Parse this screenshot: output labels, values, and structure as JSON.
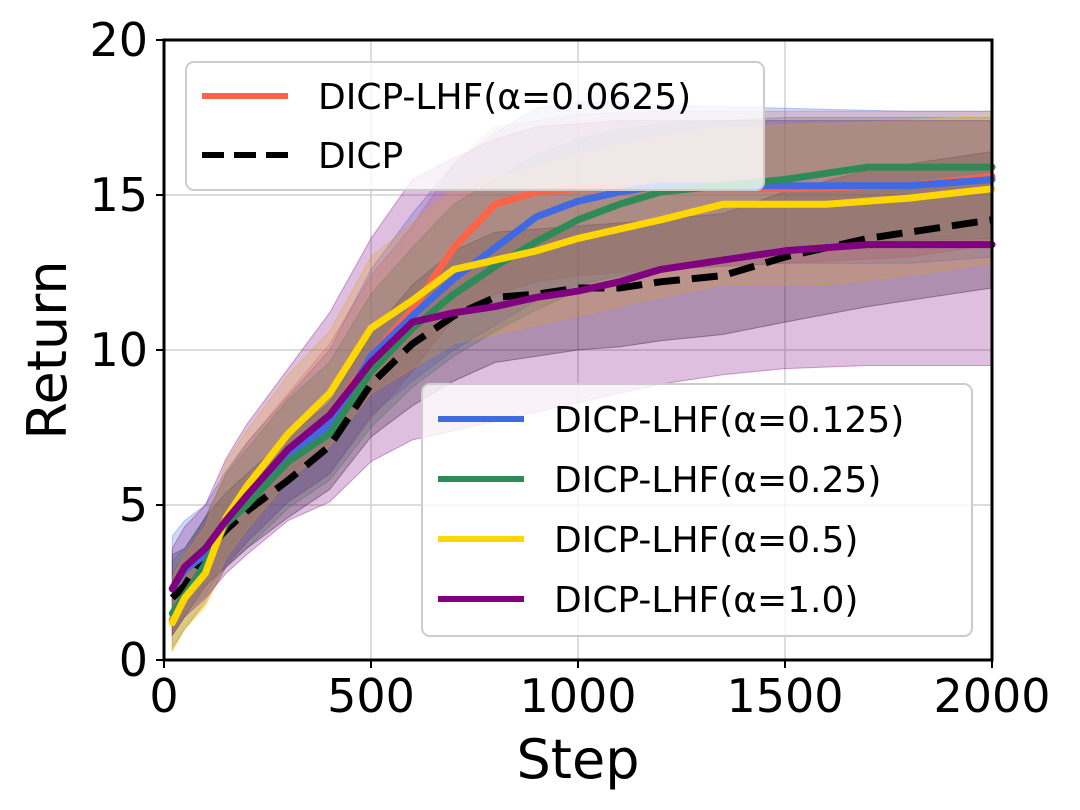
{
  "chart_data": {
    "type": "line",
    "title": "",
    "xlabel": "Step",
    "ylabel": "Return",
    "xlim": [
      0,
      2000
    ],
    "ylim": [
      0,
      20
    ],
    "xticks": [
      "0",
      "500",
      "1000",
      "1500",
      "2000"
    ],
    "yticks": [
      "0",
      "5",
      "10",
      "15",
      "20"
    ],
    "grid": true,
    "legend_upper": {
      "placement": "top-left",
      "entries": [
        "DICP-LHF(α=0.0625)",
        "DICP"
      ]
    },
    "legend_lower": {
      "placement": "lower-right",
      "entries": [
        "DICP-LHF(α=0.125)",
        "DICP-LHF(α=0.25)",
        "DICP-LHF(α=0.5)",
        "DICP-LHF(α=1.0)"
      ]
    },
    "series": [
      {
        "name": "DICP-LHF(α=0.0625)",
        "color": "#ff6347",
        "dash": false,
        "x": [
          20,
          50,
          100,
          150,
          200,
          300,
          400,
          500,
          600,
          650,
          700,
          800,
          900,
          1000,
          1200,
          1500,
          1800,
          2000
        ],
        "values": [
          1.3,
          2.0,
          3.0,
          4.4,
          5.2,
          6.6,
          7.8,
          9.8,
          11.3,
          12.3,
          13.3,
          14.7,
          15.1,
          15.2,
          15.2,
          15.2,
          15.3,
          15.6
        ],
        "band_low": [
          0.3,
          1.0,
          1.8,
          3.0,
          3.8,
          5.1,
          6.0,
          7.8,
          9.3,
          10.2,
          11.0,
          11.8,
          12.2,
          12.4,
          12.6,
          12.8,
          13.0,
          13.4
        ],
        "band_high": [
          2.8,
          3.4,
          4.6,
          6.0,
          7.0,
          8.6,
          10.2,
          12.4,
          14.0,
          15.0,
          16.0,
          17.2,
          17.4,
          17.6,
          17.7,
          17.7,
          17.7,
          17.7
        ]
      },
      {
        "name": "DICP",
        "color": "#000000",
        "dash": true,
        "x": [
          20,
          50,
          100,
          150,
          200,
          300,
          400,
          500,
          600,
          700,
          800,
          900,
          1000,
          1100,
          1200,
          1350,
          1500,
          1700,
          2000
        ],
        "values": [
          2.0,
          2.4,
          3.5,
          4.2,
          4.8,
          5.8,
          6.9,
          8.9,
          10.2,
          11.1,
          11.7,
          11.8,
          12.0,
          12.0,
          12.2,
          12.4,
          13.0,
          13.6,
          14.2
        ],
        "band_low": [
          0.8,
          1.4,
          2.4,
          3.0,
          3.6,
          4.6,
          5.5,
          7.2,
          8.2,
          9.0,
          9.6,
          9.8,
          10.0,
          10.1,
          10.3,
          10.5,
          10.9,
          11.4,
          12.0
        ],
        "band_high": [
          3.4,
          3.6,
          4.6,
          5.4,
          6.0,
          7.2,
          8.3,
          10.5,
          12.1,
          13.2,
          13.8,
          13.9,
          14.0,
          14.1,
          14.2,
          14.4,
          15.1,
          15.8,
          16.4
        ]
      },
      {
        "name": "DICP-LHF(α=0.125)",
        "color": "#4169e1",
        "dash": false,
        "x": [
          20,
          50,
          100,
          150,
          200,
          300,
          400,
          500,
          600,
          700,
          800,
          900,
          1000,
          1100,
          1200,
          1500,
          1800,
          2000
        ],
        "values": [
          2.3,
          2.9,
          3.4,
          4.5,
          5.2,
          6.6,
          7.6,
          9.8,
          11.1,
          12.3,
          13.3,
          14.3,
          14.8,
          15.1,
          15.3,
          15.3,
          15.3,
          15.5
        ],
        "band_low": [
          0.9,
          1.5,
          2.1,
          3.1,
          3.8,
          5.1,
          6.0,
          7.9,
          9.0,
          10.0,
          10.8,
          11.6,
          12.1,
          12.4,
          12.6,
          12.8,
          12.8,
          13.0
        ],
        "band_high": [
          4.0,
          4.5,
          5.0,
          6.1,
          7.0,
          8.5,
          10.0,
          12.6,
          14.4,
          16.0,
          17.0,
          17.8,
          18.0,
          18.0,
          17.9,
          17.8,
          17.7,
          17.7
        ]
      },
      {
        "name": "DICP-LHF(α=0.25)",
        "color": "#2e8b57",
        "dash": false,
        "x": [
          20,
          50,
          100,
          150,
          200,
          300,
          400,
          500,
          600,
          700,
          800,
          900,
          1000,
          1100,
          1200,
          1500,
          1700,
          2000
        ],
        "values": [
          1.5,
          2.1,
          3.1,
          4.4,
          5.0,
          6.4,
          7.3,
          9.3,
          10.7,
          11.8,
          12.7,
          13.5,
          14.2,
          14.7,
          15.1,
          15.5,
          15.9,
          15.9
        ],
        "band_low": [
          0.4,
          1.0,
          1.9,
          3.0,
          3.6,
          4.9,
          5.8,
          7.5,
          8.8,
          9.8,
          10.6,
          11.3,
          11.9,
          12.3,
          12.7,
          13.1,
          13.5,
          13.6
        ],
        "band_high": [
          3.2,
          3.6,
          4.6,
          6.0,
          6.8,
          8.4,
          9.6,
          11.8,
          13.3,
          14.7,
          15.5,
          16.3,
          16.8,
          17.1,
          17.3,
          17.5,
          17.5,
          17.5
        ]
      },
      {
        "name": "DICP-LHF(α=0.5)",
        "color": "#ffd700",
        "dash": false,
        "x": [
          20,
          50,
          100,
          150,
          200,
          300,
          400,
          500,
          600,
          700,
          800,
          900,
          1000,
          1100,
          1200,
          1350,
          1600,
          1800,
          2000
        ],
        "values": [
          1.2,
          2.0,
          2.8,
          4.6,
          5.6,
          7.3,
          8.6,
          10.7,
          11.6,
          12.6,
          12.9,
          13.2,
          13.6,
          13.9,
          14.2,
          14.7,
          14.7,
          14.9,
          15.2
        ],
        "band_low": [
          0.3,
          1.0,
          1.7,
          3.3,
          4.2,
          5.8,
          6.9,
          8.6,
          9.4,
          10.2,
          10.5,
          10.8,
          11.1,
          11.4,
          11.7,
          12.1,
          12.1,
          12.4,
          12.8
        ],
        "band_high": [
          2.7,
          3.4,
          4.3,
          6.4,
          7.4,
          9.2,
          10.6,
          13.0,
          14.1,
          15.2,
          15.6,
          15.9,
          16.3,
          16.6,
          16.9,
          17.2,
          17.3,
          17.4,
          17.6
        ]
      },
      {
        "name": "DICP-LHF(α=1.0)",
        "color": "#800080",
        "dash": false,
        "x": [
          20,
          50,
          100,
          150,
          200,
          300,
          400,
          500,
          600,
          700,
          800,
          900,
          1000,
          1100,
          1200,
          1350,
          1500,
          1700,
          1850,
          2000
        ],
        "values": [
          2.3,
          3.0,
          3.6,
          4.5,
          5.3,
          6.8,
          7.9,
          9.6,
          10.9,
          11.2,
          11.4,
          11.7,
          11.9,
          12.2,
          12.6,
          12.9,
          13.2,
          13.4,
          13.4,
          13.4
        ],
        "band_low": [
          0.8,
          1.4,
          2.0,
          2.8,
          3.4,
          4.5,
          5.1,
          6.4,
          7.1,
          7.4,
          7.7,
          8.0,
          8.3,
          8.6,
          8.9,
          9.2,
          9.4,
          9.5,
          9.5,
          9.5
        ],
        "band_high": [
          3.6,
          4.3,
          5.0,
          6.5,
          7.6,
          9.4,
          11.2,
          13.6,
          15.5,
          16.2,
          16.8,
          17.2,
          17.3,
          17.4,
          17.4,
          17.4,
          17.4,
          17.4,
          17.4,
          17.4
        ]
      }
    ]
  }
}
